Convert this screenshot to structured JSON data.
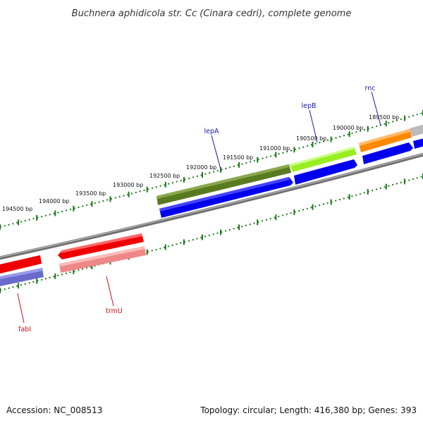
{
  "title": "Buchnera aphidicola str. Cc (Cinara cedri), complete genome",
  "accession": "Accession: NC_008513",
  "summary": "Topology: circular; Length: 416,380 bp; Genes: 393",
  "tick_labels": [
    "189500 bp",
    "190000 bp",
    "190500 bp",
    "191000 bp",
    "191500 bp",
    "192000 bp",
    "192500 bp",
    "193000 bp",
    "193500 bp",
    "194000 bp",
    "194500 bp"
  ],
  "gene_labels": [
    "rnc",
    "lepB",
    "lepA",
    "trmU",
    "fabI"
  ],
  "colors": {
    "backbone": "#8a8a8a",
    "tick": "#1a7a1a",
    "blue": "#0000ee",
    "red": "#ee0000",
    "pink": "#ee8888",
    "purple": "#6a6acc",
    "olive": "#5a7a20",
    "lime": "#99ee22",
    "orange": "#ff8800",
    "grey": "#bbbbbb",
    "label_blue": "#1a1ab0",
    "label_red": "#cc1111"
  }
}
